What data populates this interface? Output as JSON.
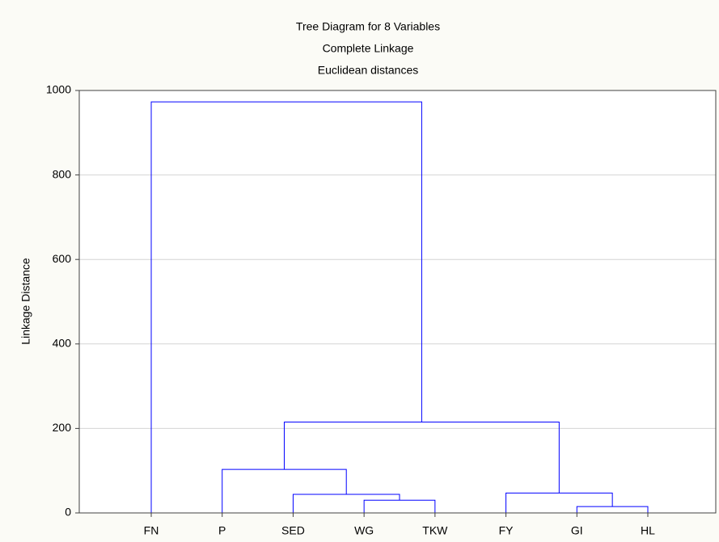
{
  "chart_data": {
    "type": "dendrogram",
    "title": "Tree Diagram for 8 Variables",
    "subtitle": [
      "Complete Linkage",
      "Euclidean distances"
    ],
    "ylabel": "Linkage Distance",
    "categories": [
      "FN",
      "P",
      "SED",
      "WG",
      "TKW",
      "FY",
      "GI",
      "HL"
    ],
    "merges": [
      {
        "children": [
          6,
          7
        ],
        "height": 15
      },
      {
        "children": [
          3,
          4
        ],
        "height": 30
      },
      {
        "children": [
          2,
          9
        ],
        "height": 44
      },
      {
        "children": [
          5,
          8
        ],
        "height": 47
      },
      {
        "children": [
          1,
          10
        ],
        "height": 103
      },
      {
        "children": [
          11,
          12
        ],
        "height": 215
      },
      {
        "children": [
          0,
          13
        ],
        "height": 973
      }
    ],
    "color": "#0000ff",
    "ylim": [
      0,
      1000
    ],
    "yticks": [
      0,
      200,
      400,
      600,
      800,
      1000
    ],
    "grid": true
  }
}
